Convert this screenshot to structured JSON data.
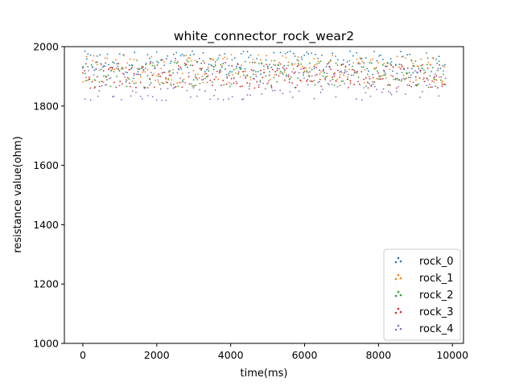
{
  "chart_data": {
    "type": "scatter",
    "title": "white_connector_rock_wear2",
    "xlabel": "time(ms)",
    "ylabel": "resistance value(ohm)",
    "xlim": [
      -500,
      10300
    ],
    "ylim": [
      1000,
      2000
    ],
    "xticks": [
      0,
      2000,
      4000,
      6000,
      8000,
      10000
    ],
    "yticks": [
      1000,
      1200,
      1400,
      1600,
      1800,
      2000
    ],
    "legend_position": "lower-right",
    "x_range": [
      0,
      9800
    ],
    "sample_interval": 50,
    "series": [
      {
        "name": "rock_0",
        "color": "#1f77b4",
        "center": 1945,
        "spread": 25
      },
      {
        "name": "rock_1",
        "color": "#ff7f0e",
        "center": 1925,
        "spread": 30
      },
      {
        "name": "rock_2",
        "color": "#2ca02c",
        "center": 1910,
        "spread": 30
      },
      {
        "name": "rock_3",
        "color": "#d62728",
        "center": 1905,
        "spread": 28
      },
      {
        "name": "rock_4",
        "color": "#9467bd",
        "center": 1875,
        "spread": 35
      }
    ]
  }
}
